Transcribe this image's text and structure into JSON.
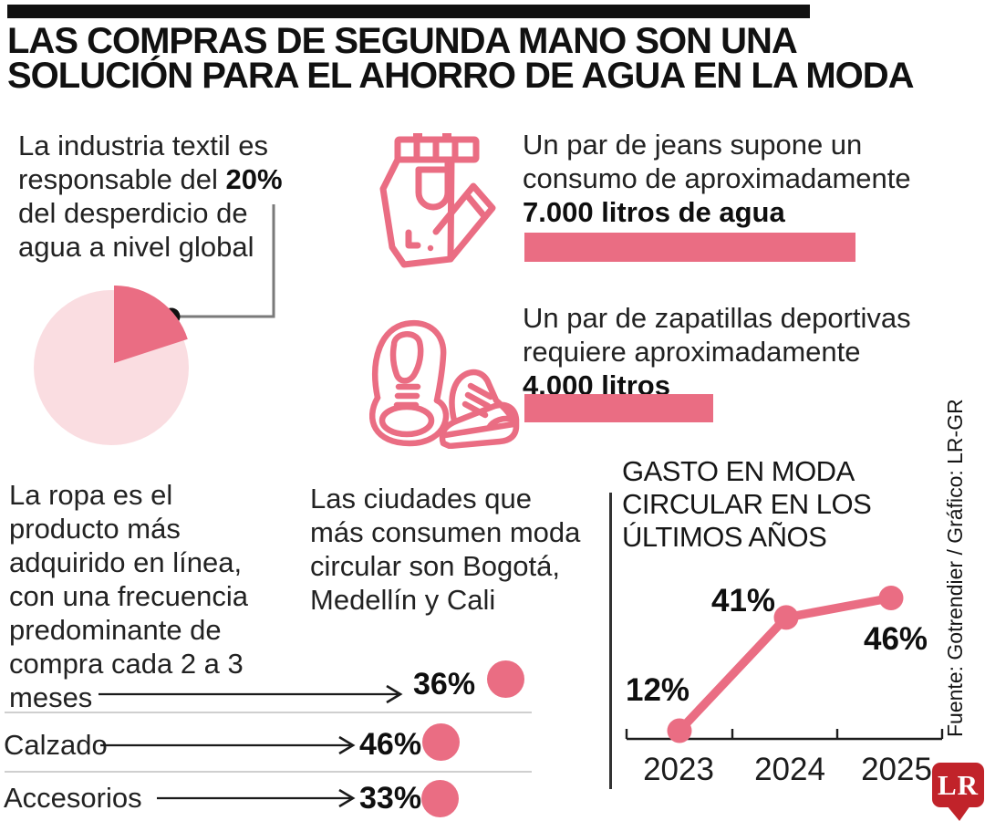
{
  "colors": {
    "accent_pink": "#ea6d83",
    "light_pink": "#fadde1",
    "logo_red": "#c1232a",
    "ink": "#111111",
    "divider_gray": "#cfcfcf",
    "connector_gray": "#7a7a7a"
  },
  "header": {
    "title_line1": "LAS COMPRAS DE SEGUNDA MANO SON UNA",
    "title_line2": "SOLUCIÓN PARA EL AHORRO DE AGUA EN LA MODA"
  },
  "textile": {
    "line1": "La industria textil es",
    "line2_normal": "responsable del ",
    "line2_bold": "20%",
    "line3": "del desperdicio de",
    "line4": "agua a nivel global",
    "pie_percent": 20
  },
  "jeans": {
    "icon": "jeans-icon",
    "line1": "Un par de jeans supone un",
    "line2": "consumo de aproximadamente",
    "bold": "7.000 litros de agua",
    "liters": 7000
  },
  "sneakers": {
    "icon": "sneakers-icon",
    "line1": "Un par de zapatillas deportivas",
    "line2": "requiere aproximadamente",
    "bold": "4.000 litros",
    "liters": 4000
  },
  "online_purchase": {
    "lines": [
      "La ropa es el",
      "producto más",
      "adquirido en línea,",
      "con una frecuencia",
      "predominante de",
      "compra cada 2 a 3",
      "meses"
    ]
  },
  "cities": {
    "lines": [
      "Las ciudades que",
      "más consumen moda",
      "circular son Bogotá,",
      "Medellín y Cali"
    ]
  },
  "category_rows": [
    {
      "label": "",
      "pct_label": "36%",
      "pct": 36
    },
    {
      "label": "Calzado",
      "pct_label": "46%",
      "pct": 46
    },
    {
      "label": "Accesorios",
      "pct_label": "33%",
      "pct": 33
    }
  ],
  "spending_chart": {
    "title_line1": "GASTO EN MODA",
    "title_line2": "CIRCULAR EN LOS",
    "title_line3": "ÚLTIMOS AÑOS",
    "years": [
      "2023",
      "2024",
      "2025"
    ],
    "values": [
      12,
      41,
      46
    ],
    "labels": [
      "12%",
      "41%",
      "46%"
    ]
  },
  "source": {
    "credit": "Fuente: Gotrendier / Gráfico: LR-GR",
    "logo_text": "LR"
  },
  "chart_data": [
    {
      "type": "pie",
      "values": [
        20,
        80
      ],
      "labels": [
        "20%",
        ""
      ],
      "title": "La industria textil es responsable del 20% del desperdicio de agua a nivel global",
      "colors": [
        "#ea6d83",
        "#fadde1"
      ],
      "annotation": "20%"
    },
    {
      "type": "bar",
      "categories": [
        "Un par de jeans — 7.000 litros de agua",
        "Un par de zapatillas deportivas — 4.000 litros"
      ],
      "values": [
        7000,
        4000
      ],
      "unit": "litros de agua",
      "orientation": "horizontal"
    },
    {
      "type": "bar",
      "categories": [
        "La ropa (compra cada 2 a 3 meses)",
        "Calzado",
        "Accesorios"
      ],
      "values": [
        36,
        46,
        33
      ],
      "unit": "%",
      "orientation": "dot-rows"
    },
    {
      "type": "line",
      "title": "GASTO EN MODA CIRCULAR EN LOS ÚLTIMOS AÑOS",
      "x": [
        "2023",
        "2024",
        "2025"
      ],
      "values": [
        12,
        41,
        46
      ],
      "data_labels": [
        "12%",
        "41%",
        "46%"
      ],
      "ylim": [
        0,
        50
      ],
      "grid": false,
      "legend": "none"
    }
  ]
}
